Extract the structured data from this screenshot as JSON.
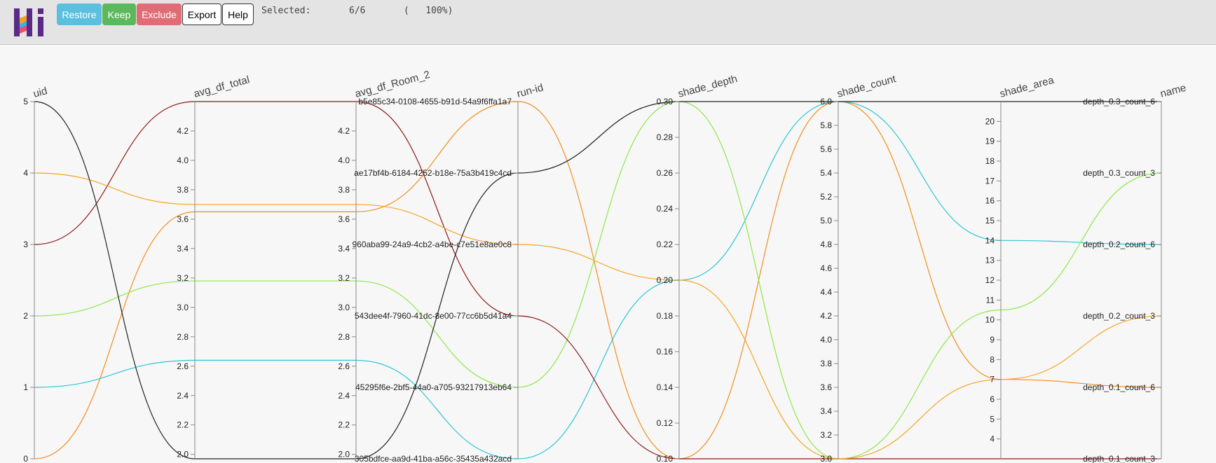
{
  "toolbar": {
    "logo_alt": "Hi",
    "restore_label": "Restore",
    "keep_label": "Keep",
    "exclude_label": "Exclude",
    "export_label": "Export",
    "help_label": "Help",
    "selected_label": "Selected:",
    "selected_count": "6/6",
    "selected_percent": "(   100%)"
  },
  "colors": {
    "toolbar_bg": "#e4e4e4",
    "restore": "#5bc0de",
    "keep": "#5cb85c",
    "exclude": "#e06c75",
    "series": [
      "#f28e1c",
      "#2fc6d6",
      "#8ee84a",
      "#8b1a1a",
      "#f5a623",
      "#222222"
    ]
  },
  "chart_data": {
    "type": "parallel_coordinates",
    "axes": [
      {
        "name": "uid",
        "type": "numeric",
        "range": [
          0,
          5
        ],
        "ticks": [
          0,
          1,
          2,
          3,
          4,
          5
        ],
        "tick_labels": [
          "0",
          "1",
          "2",
          "3",
          "4",
          "5"
        ]
      },
      {
        "name": "avg_df_total",
        "type": "numeric",
        "range": [
          1.97,
          4.4
        ],
        "ticks": [
          2.0,
          2.2,
          2.4,
          2.6,
          2.8,
          3.0,
          3.2,
          3.4,
          3.6,
          3.8,
          4.0,
          4.2
        ],
        "tick_labels": [
          "2.0",
          "2.2",
          "2.4",
          "2.6",
          "2.8",
          "3.0",
          "3.2",
          "3.4",
          "3.6",
          "3.8",
          "4.0",
          "4.2"
        ]
      },
      {
        "name": "avg_df_Room_2",
        "type": "numeric",
        "range": [
          1.97,
          4.4
        ],
        "ticks": [
          2.0,
          2.2,
          2.4,
          2.6,
          2.8,
          3.0,
          3.2,
          3.4,
          3.6,
          3.8,
          4.0,
          4.2
        ],
        "tick_labels": [
          "2.0",
          "2.2",
          "2.4",
          "2.6",
          "2.8",
          "3.0",
          "3.2",
          "3.4",
          "3.6",
          "3.8",
          "4.0",
          "4.2"
        ]
      },
      {
        "name": "run-id",
        "type": "categorical",
        "categories": [
          "305bdfce-aa9d-41ba-a56c-35435a432acd",
          "45295f6e-2bf5-44a0-a705-93217913eb64",
          "543dee4f-7960-41dc-8e00-77cc6b5d41a4",
          "960aba99-24a9-4cb2-a4be-c7e51e8ae0c8",
          "ae17bf4b-6184-4252-b18e-75a3b419c4cd",
          "b5e85c34-0108-4655-b91d-54a9f6ffa1a7"
        ]
      },
      {
        "name": "shade_depth",
        "type": "numeric",
        "range": [
          0.1,
          0.3
        ],
        "ticks": [
          0.1,
          0.12,
          0.14,
          0.16,
          0.18,
          0.2,
          0.22,
          0.24,
          0.26,
          0.28,
          0.3
        ],
        "tick_labels": [
          "0.10",
          "0.12",
          "0.14",
          "0.16",
          "0.18",
          "0.20",
          "0.22",
          "0.24",
          "0.26",
          "0.28",
          "0.30"
        ]
      },
      {
        "name": "shade_count",
        "type": "numeric",
        "range": [
          3.0,
          6.0
        ],
        "ticks": [
          3.0,
          3.2,
          3.4,
          3.6,
          3.8,
          4.0,
          4.2,
          4.4,
          4.6,
          4.8,
          5.0,
          5.2,
          5.4,
          5.6,
          5.8,
          6.0
        ],
        "tick_labels": [
          "3.0",
          "3.2",
          "3.4",
          "3.6",
          "3.8",
          "4.0",
          "4.2",
          "4.4",
          "4.6",
          "4.8",
          "5.0",
          "5.2",
          "5.4",
          "5.6",
          "5.8",
          "6.0"
        ]
      },
      {
        "name": "shade_area",
        "type": "numeric",
        "range": [
          3.0,
          21.0
        ],
        "ticks": [
          4,
          5,
          6,
          7,
          8,
          9,
          10,
          11,
          12,
          13,
          14,
          15,
          16,
          17,
          18,
          19,
          20
        ],
        "tick_labels": [
          "4",
          "5",
          "6",
          "7",
          "8",
          "9",
          "10",
          "11",
          "12",
          "13",
          "14",
          "15",
          "16",
          "17",
          "18",
          "19",
          "20"
        ]
      },
      {
        "name": "name",
        "type": "categorical",
        "categories": [
          "depth_0.1_count_3",
          "depth_0.1_count_6",
          "depth_0.2_count_3",
          "depth_0.2_count_6",
          "depth_0.3_count_3",
          "depth_0.3_count_6"
        ]
      }
    ],
    "series": [
      {
        "color": "#f28e1c",
        "values": [
          0,
          3.65,
          3.65,
          "b5e85c34-0108-4655-b91d-54a9f6ffa1a7",
          0.1,
          6.0,
          7.0,
          "depth_0.1_count_6"
        ]
      },
      {
        "color": "#2fc6d6",
        "values": [
          1,
          2.64,
          2.64,
          "305bdfce-aa9d-41ba-a56c-35435a432acd",
          0.2,
          6.0,
          14.0,
          "depth_0.2_count_6"
        ]
      },
      {
        "color": "#8ee84a",
        "values": [
          2,
          3.18,
          3.18,
          "45295f6e-2bf5-44a0-a705-93217913eb64",
          0.3,
          3.0,
          10.5,
          "depth_0.3_count_3"
        ]
      },
      {
        "color": "#8b1a1a",
        "values": [
          3,
          4.4,
          4.4,
          "543dee4f-7960-41dc-8e00-77cc6b5d41a4",
          0.1,
          3.0,
          3.0,
          "depth_0.1_count_3"
        ]
      },
      {
        "color": "#f5a623",
        "values": [
          4,
          3.7,
          3.7,
          "960aba99-24a9-4cb2-a4be-c7e51e8ae0c8",
          0.2,
          3.0,
          7.0,
          "depth_0.2_count_3"
        ]
      },
      {
        "color": "#222222",
        "values": [
          5,
          1.97,
          1.97,
          "ae17bf4b-6184-4252-b18e-75a3b419c4cd",
          0.3,
          6.0,
          21.0,
          "depth_0.3_count_6"
        ]
      }
    ]
  }
}
